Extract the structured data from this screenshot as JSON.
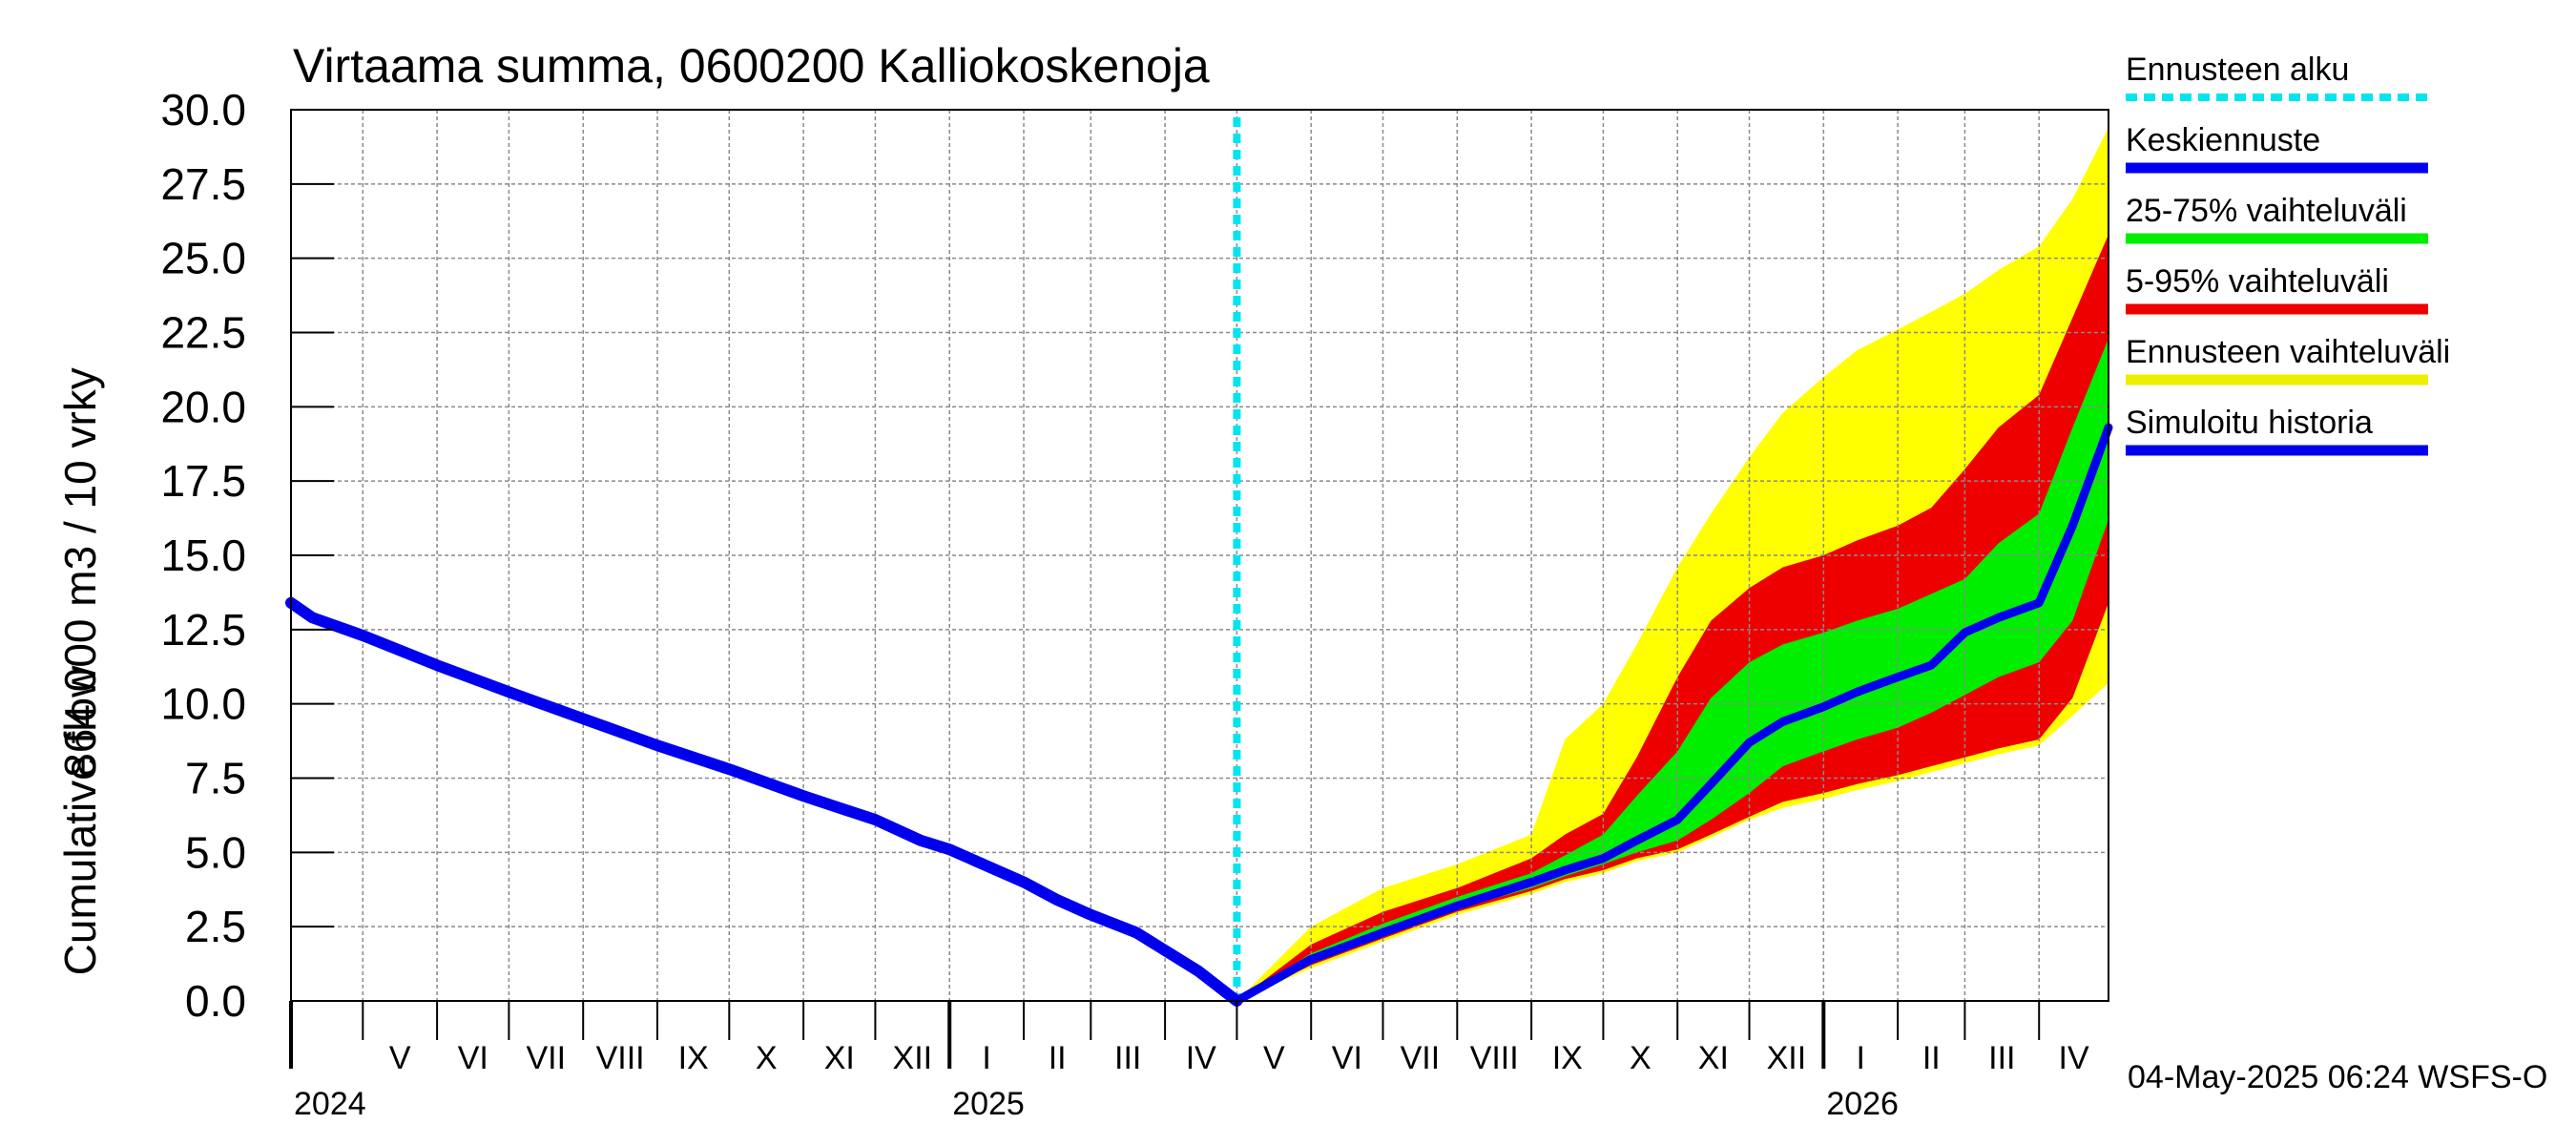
{
  "chart_data": {
    "type": "area",
    "title": "Virtaama summa, 0600200 Kalliokoskenoja",
    "ylabel_line1": "864 000 m3 / 10 vrky",
    "ylabel_line2": "Cumulative flow",
    "ylim": [
      0,
      30
    ],
    "yticks": [
      "0.0",
      "2.5",
      "5.0",
      "7.5",
      "10.0",
      "12.5",
      "15.0",
      "17.5",
      "20.0",
      "22.5",
      "25.0",
      "27.5",
      "30.0"
    ],
    "xlim": [
      "2024-04-01",
      "2026-04-30"
    ],
    "month_labels": [
      {
        "label": "V",
        "date": "2024-05-01"
      },
      {
        "label": "VI",
        "date": "2024-06-01"
      },
      {
        "label": "VII",
        "date": "2024-07-01"
      },
      {
        "label": "VIII",
        "date": "2024-08-01"
      },
      {
        "label": "IX",
        "date": "2024-09-01"
      },
      {
        "label": "X",
        "date": "2024-10-01"
      },
      {
        "label": "XI",
        "date": "2024-11-01"
      },
      {
        "label": "XII",
        "date": "2024-12-01"
      },
      {
        "label": "I",
        "date": "2025-01-01"
      },
      {
        "label": "II",
        "date": "2025-02-01"
      },
      {
        "label": "III",
        "date": "2025-03-01"
      },
      {
        "label": "IV",
        "date": "2025-04-01"
      },
      {
        "label": "V",
        "date": "2025-05-01"
      },
      {
        "label": "VI",
        "date": "2025-06-01"
      },
      {
        "label": "VII",
        "date": "2025-07-01"
      },
      {
        "label": "VIII",
        "date": "2025-08-01"
      },
      {
        "label": "IX",
        "date": "2025-09-01"
      },
      {
        "label": "X",
        "date": "2025-10-01"
      },
      {
        "label": "XI",
        "date": "2025-11-01"
      },
      {
        "label": "XII",
        "date": "2025-12-01"
      },
      {
        "label": "I",
        "date": "2026-01-01"
      },
      {
        "label": "II",
        "date": "2026-02-01"
      },
      {
        "label": "III",
        "date": "2026-03-01"
      },
      {
        "label": "IV",
        "date": "2026-04-01"
      }
    ],
    "year_labels": [
      {
        "label": "2024",
        "date": "2024-04-01"
      },
      {
        "label": "2025",
        "date": "2025-01-01"
      },
      {
        "label": "2026",
        "date": "2026-01-01"
      }
    ],
    "forecast_start": "2025-05-01",
    "timestamp": "04-May-2025 06:24 WSFS-O",
    "legend": [
      {
        "name": "Ennusteen alku",
        "color": "#00e5ee",
        "style": "dotted"
      },
      {
        "name": "Keskiennuste",
        "color": "#0000ee",
        "style": "solid"
      },
      {
        "name": "25-75% vaihteluväli",
        "color": "#00ee00",
        "style": "solid"
      },
      {
        "name": "5-95% vaihteluväli",
        "color": "#ee0000",
        "style": "solid"
      },
      {
        "name": "Ennusteen vaihteluväli",
        "color": "#eeee00",
        "style": "solid"
      },
      {
        "name": "Simuloitu historia",
        "color": "#0000ee",
        "style": "solid"
      }
    ],
    "colors": {
      "history": "#0000ee",
      "median": "#0000ee",
      "band_25_75": "#00ee00",
      "band_5_95": "#ee0000",
      "band_full": "#ffff00",
      "forecast_start": "#00e5ee"
    },
    "history": {
      "x": [
        "2024-04-01",
        "2024-04-10",
        "2024-05-01",
        "2024-06-01",
        "2024-07-01",
        "2024-08-01",
        "2024-09-01",
        "2024-10-01",
        "2024-11-01",
        "2024-12-01",
        "2024-12-20",
        "2025-01-01",
        "2025-01-15",
        "2025-02-01",
        "2025-02-15",
        "2025-03-01",
        "2025-03-20",
        "2025-04-01",
        "2025-04-15",
        "2025-05-01"
      ],
      "y": [
        13.4,
        12.9,
        12.3,
        11.3,
        10.4,
        9.5,
        8.6,
        7.8,
        6.9,
        6.1,
        5.4,
        5.1,
        4.6,
        4.0,
        3.4,
        2.9,
        2.3,
        1.7,
        1.0,
        0.0
      ]
    },
    "forecast": {
      "x": [
        "2025-05-01",
        "2025-06-01",
        "2025-07-01",
        "2025-08-01",
        "2025-09-01",
        "2025-09-15",
        "2025-10-01",
        "2025-10-15",
        "2025-11-01",
        "2025-11-15",
        "2025-12-01",
        "2025-12-15",
        "2026-01-01",
        "2026-01-15",
        "2026-02-01",
        "2026-02-15",
        "2026-03-01",
        "2026-03-15",
        "2026-04-01",
        "2026-04-15",
        "2026-04-30"
      ],
      "median": [
        0.0,
        1.4,
        2.3,
        3.2,
        4.0,
        4.4,
        4.8,
        5.4,
        6.1,
        7.3,
        8.7,
        9.4,
        9.9,
        10.4,
        10.9,
        11.3,
        12.4,
        12.9,
        13.4,
        16.0,
        19.3
      ],
      "p25": [
        0.0,
        1.3,
        2.2,
        3.1,
        3.8,
        4.2,
        4.6,
        5.0,
        5.4,
        6.1,
        7.0,
        7.9,
        8.4,
        8.8,
        9.2,
        9.7,
        10.3,
        10.9,
        11.4,
        12.8,
        16.2
      ],
      "p75": [
        0.0,
        1.6,
        2.6,
        3.5,
        4.3,
        4.9,
        5.6,
        6.9,
        8.4,
        10.2,
        11.4,
        12.0,
        12.4,
        12.8,
        13.2,
        13.7,
        14.2,
        15.4,
        16.4,
        19.3,
        22.3
      ],
      "p5": [
        0.0,
        1.2,
        2.1,
        3.0,
        3.7,
        4.1,
        4.4,
        4.8,
        5.1,
        5.6,
        6.2,
        6.7,
        7.0,
        7.3,
        7.6,
        7.9,
        8.2,
        8.5,
        8.8,
        10.2,
        13.4
      ],
      "p95": [
        0.0,
        1.9,
        3.0,
        3.8,
        4.8,
        5.6,
        6.3,
        8.2,
        10.9,
        12.8,
        13.9,
        14.6,
        15.0,
        15.5,
        16.0,
        16.6,
        17.9,
        19.3,
        20.4,
        23.0,
        25.8
      ],
      "min": [
        0.0,
        1.1,
        2.0,
        2.9,
        3.6,
        4.0,
        4.3,
        4.7,
        5.0,
        5.5,
        6.1,
        6.5,
        6.8,
        7.1,
        7.4,
        7.7,
        8.0,
        8.3,
        8.6,
        9.6,
        10.7
      ],
      "max": [
        0.0,
        2.5,
        3.8,
        4.6,
        5.6,
        8.8,
        10.0,
        12.0,
        14.6,
        16.4,
        18.3,
        19.8,
        21.0,
        21.9,
        22.6,
        23.2,
        23.8,
        24.6,
        25.4,
        27.0,
        29.4
      ]
    }
  }
}
